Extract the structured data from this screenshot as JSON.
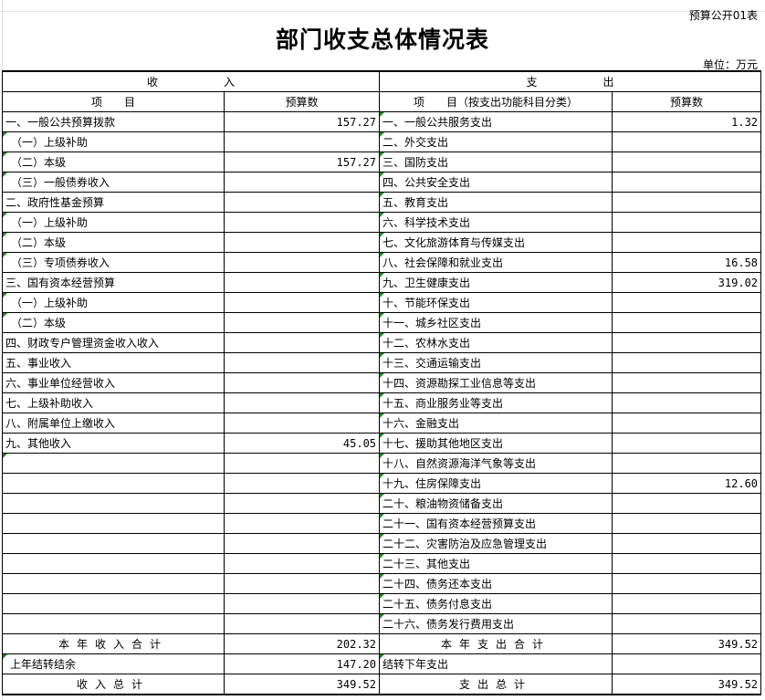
{
  "form_code": "预算公开01表",
  "title": "部门收支总体情况表",
  "unit": "单位：万元",
  "header": {
    "income": "收　　　　　　入",
    "expense": "支　　　　　　出",
    "item": "项　　目",
    "budget": "预算数",
    "exp_item": "项　　目（按支出功能科目分类）",
    "exp_budget": "预算数"
  },
  "rows": [
    {
      "in": "一、一般公共预算拨款",
      "iv": "157.27",
      "ex": "一、一般公共服务支出",
      "ev": "1.32"
    },
    {
      "in": "　（一）上级补助",
      "iv": "",
      "ex": "二、外交支出",
      "ev": ""
    },
    {
      "in": "　（二）本级",
      "iv": "157.27",
      "ex": "三、国防支出",
      "ev": ""
    },
    {
      "in": "　（三）一般债券收入",
      "iv": "",
      "ex": "四、公共安全支出",
      "ev": ""
    },
    {
      "in": "二、政府性基金预算",
      "iv": "",
      "ex": "五、教育支出",
      "ev": ""
    },
    {
      "in": "　（一）上级补助",
      "iv": "",
      "ex": "六、科学技术支出",
      "ev": ""
    },
    {
      "in": "　（二）本级",
      "iv": "",
      "ex": "七、文化旅游体育与传媒支出",
      "ev": ""
    },
    {
      "in": "　（三）专项债券收入",
      "iv": "",
      "ex": "八、社会保障和就业支出",
      "ev": "16.58"
    },
    {
      "in": "三、国有资本经营预算",
      "iv": "",
      "ex": "九、卫生健康支出",
      "ev": "319.02"
    },
    {
      "in": "　（一）上级补助",
      "iv": "",
      "ex": "十、节能环保支出",
      "ev": ""
    },
    {
      "in": "　（二）本级",
      "iv": "",
      "ex": "十一、城乡社区支出",
      "ev": ""
    },
    {
      "in": "四、财政专户管理资金收入收入",
      "iv": "",
      "ex": "十二、农林水支出",
      "ev": ""
    },
    {
      "in": "五、事业收入",
      "iv": "",
      "ex": "十三、交通运输支出",
      "ev": ""
    },
    {
      "in": "六、事业单位经营收入",
      "iv": "",
      "ex": "十四、资源勘探工业信息等支出",
      "ev": ""
    },
    {
      "in": "七、上级补助收入",
      "iv": "",
      "ex": "十五、商业服务业等支出",
      "ev": ""
    },
    {
      "in": "八、附属单位上缴收入",
      "iv": "",
      "ex": "十六、金融支出",
      "ev": ""
    },
    {
      "in": "九、其他收入",
      "iv": "45.05",
      "ex": "十七、援助其他地区支出",
      "ev": ""
    },
    {
      "in": "",
      "iv": "",
      "ex": "十八、自然资源海洋气象等支出",
      "ev": ""
    },
    {
      "in": "",
      "iv": "",
      "ex": "十九、住房保障支出",
      "ev": "12.60"
    },
    {
      "in": "",
      "iv": "",
      "ex": "二十、粮油物资储备支出",
      "ev": ""
    },
    {
      "in": "",
      "iv": "",
      "ex": "二十一、国有资本经营预算支出",
      "ev": ""
    },
    {
      "in": "",
      "iv": "",
      "ex": "二十二、灾害防治及应急管理支出",
      "ev": ""
    },
    {
      "in": "",
      "iv": "",
      "ex": "二十三、其他支出",
      "ev": ""
    },
    {
      "in": "",
      "iv": "",
      "ex": "二十四、债务还本支出",
      "ev": ""
    },
    {
      "in": "",
      "iv": "",
      "ex": "二十五、债务付息支出",
      "ev": ""
    },
    {
      "in": "",
      "iv": "",
      "ex": "二十六、债务发行费用支出",
      "ev": ""
    }
  ],
  "totals": {
    "year_income_label": "本年收入合计",
    "year_income": "202.32",
    "year_expense_label": "本年支出合计",
    "year_expense": "349.52",
    "carry_in_label": "上年结转结余",
    "carry_in": "147.20",
    "carry_out_label": "结转下年支出",
    "carry_out": "",
    "income_total_label": "收入总计",
    "income_total": "349.52",
    "expense_total_label": "支出总计",
    "expense_total": "349.52"
  }
}
